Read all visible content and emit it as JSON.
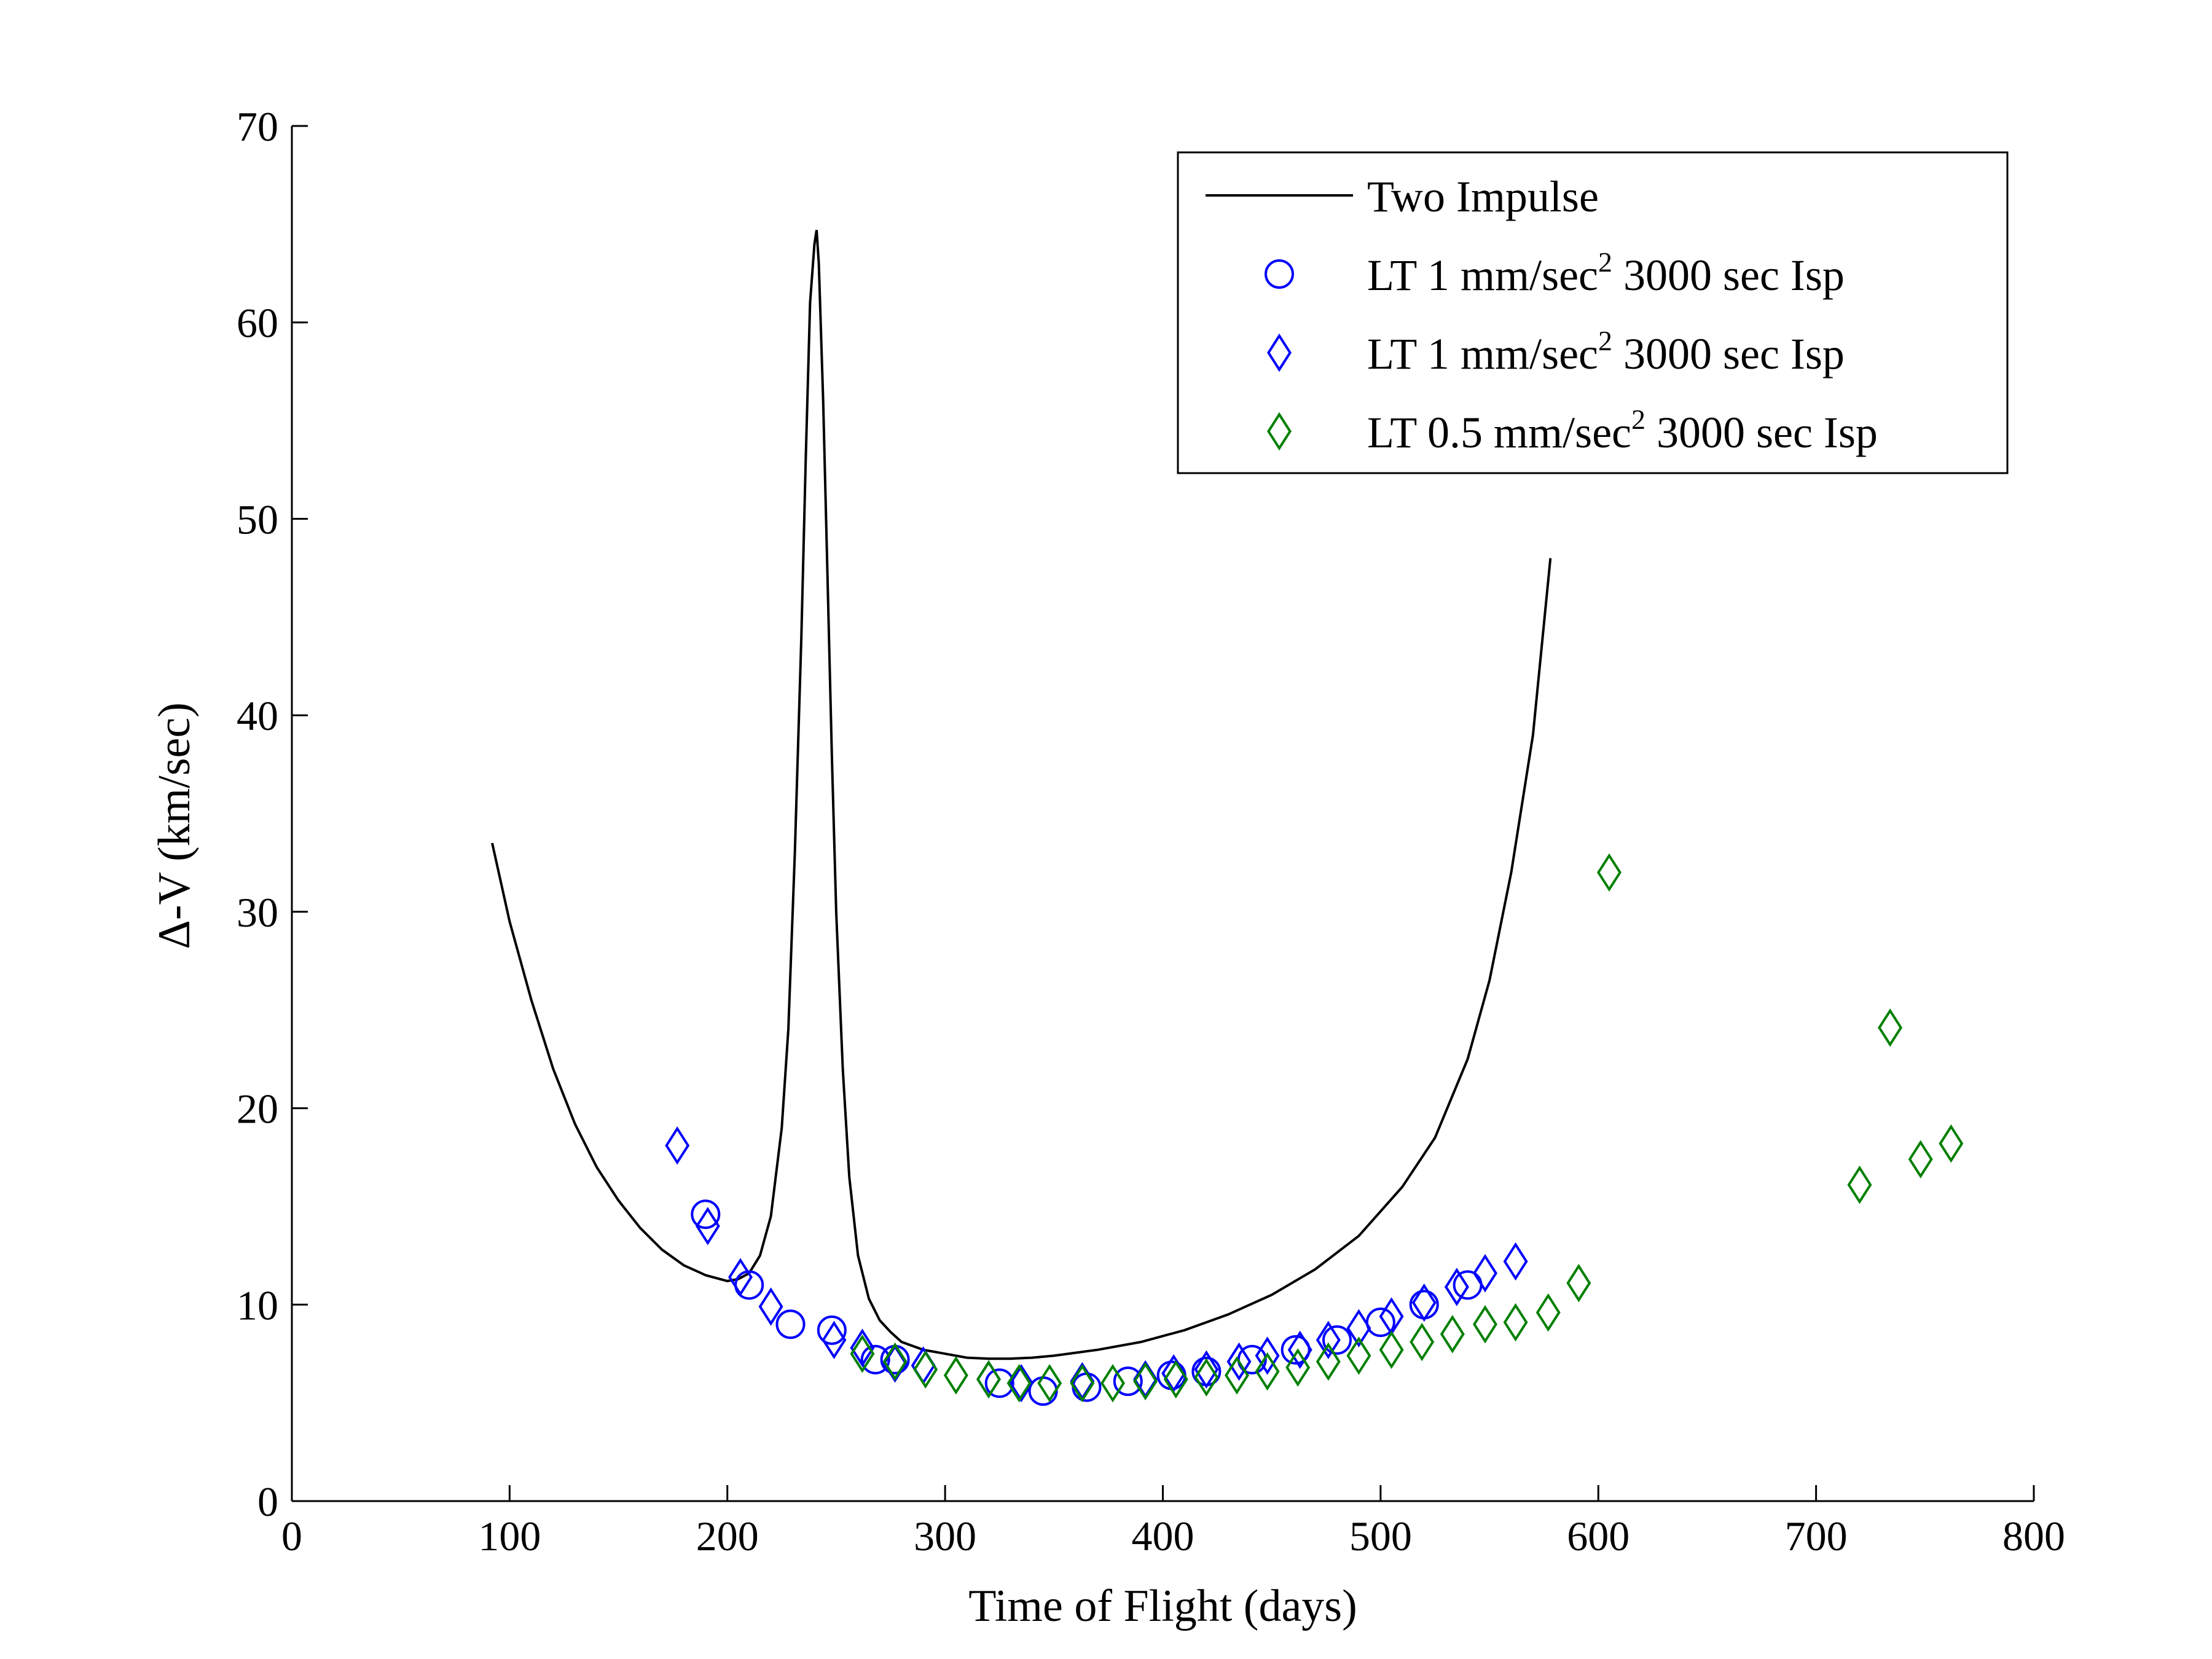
{
  "chart_data": {
    "type": "scatter",
    "xlabel": "Time of Flight (days)",
    "ylabel": "Δ-V (km/sec)",
    "xlim": [
      0,
      800
    ],
    "ylim": [
      0,
      70
    ],
    "xticks": [
      0,
      100,
      200,
      300,
      400,
      500,
      600,
      700,
      800
    ],
    "yticks": [
      0,
      10,
      20,
      30,
      40,
      50,
      60,
      70
    ],
    "grid": false,
    "legend_position": "top-right",
    "series": [
      {
        "name": "Two Impulse",
        "kind": "line",
        "color": "#000000",
        "x": [
          92,
          100,
          110,
          120,
          130,
          140,
          150,
          160,
          170,
          180,
          190,
          200,
          205,
          210,
          215,
          220,
          225,
          228,
          231,
          234,
          236,
          238,
          240,
          241,
          242,
          244,
          246,
          248,
          250,
          253,
          256,
          260,
          265,
          270,
          275,
          280,
          290,
          300,
          310,
          320,
          330,
          340,
          350,
          370,
          390,
          410,
          430,
          450,
          470,
          490,
          510,
          525,
          540,
          550,
          560,
          570,
          578
        ],
        "y": [
          33.5,
          29.5,
          25.5,
          22.0,
          19.2,
          17.0,
          15.3,
          13.9,
          12.8,
          12.0,
          11.5,
          11.2,
          11.3,
          11.6,
          12.5,
          14.5,
          19.0,
          24.0,
          33.0,
          44.0,
          53.0,
          61.0,
          64.0,
          64.7,
          63.0,
          56.0,
          47.0,
          38.0,
          30.0,
          22.0,
          16.5,
          12.5,
          10.3,
          9.2,
          8.6,
          8.1,
          7.7,
          7.5,
          7.3,
          7.25,
          7.25,
          7.3,
          7.4,
          7.7,
          8.1,
          8.7,
          9.5,
          10.5,
          11.8,
          13.5,
          16.0,
          18.5,
          22.5,
          26.5,
          32.0,
          39.0,
          48.0
        ]
      },
      {
        "name": "LT 1 mm/sec",
        "name_sup": "2",
        "name_rest": " 3000 sec Isp",
        "kind": "marker",
        "marker": "circle",
        "color": "#0000ff",
        "x": [
          190,
          210,
          229,
          248,
          268,
          277,
          325,
          345,
          365,
          384,
          404,
          420,
          441,
          461,
          480,
          500,
          520,
          540
        ],
        "y": [
          14.6,
          11.0,
          9.0,
          8.7,
          7.2,
          7.2,
          6.0,
          5.6,
          5.8,
          6.1,
          6.4,
          6.6,
          7.2,
          7.7,
          8.2,
          9.1,
          10.0,
          11.0
        ]
      },
      {
        "name": "LT 1 mm/sec",
        "name_sup": "2",
        "name_rest": " 3000 sec Isp",
        "kind": "marker",
        "marker": "diamond",
        "color": "#0000ff",
        "x": [
          177,
          191,
          206,
          220,
          249,
          262,
          277,
          290,
          320,
          335,
          363,
          392,
          405,
          420,
          435,
          448,
          463,
          476,
          490,
          505,
          520,
          535,
          548,
          562
        ],
        "y": [
          18.1,
          14.0,
          11.4,
          9.9,
          8.2,
          7.8,
          7.0,
          6.9,
          6.2,
          6.0,
          6.1,
          6.2,
          6.5,
          6.7,
          7.1,
          7.4,
          7.7,
          8.2,
          8.8,
          9.4,
          10.1,
          10.9,
          11.6,
          12.2
        ]
      },
      {
        "name": "LT 0.5 mm/sec",
        "name_sup": "2",
        "name_rest": " 3000 sec Isp",
        "kind": "marker",
        "marker": "diamond",
        "color": "#008000",
        "x": [
          262,
          277,
          291,
          305,
          320,
          334,
          348,
          363,
          377,
          392,
          406,
          420,
          434,
          448,
          462,
          476,
          490,
          505,
          519,
          533,
          548,
          562,
          577,
          591,
          605,
          720,
          734,
          748,
          762
        ],
        "y": [
          7.5,
          7.1,
          6.7,
          6.4,
          6.2,
          6.0,
          6.0,
          6.0,
          6.0,
          6.1,
          6.2,
          6.3,
          6.4,
          6.6,
          6.8,
          7.1,
          7.4,
          7.7,
          8.1,
          8.5,
          9.0,
          9.1,
          9.6,
          11.1,
          32.0,
          16.1,
          24.1,
          17.4,
          18.2
        ]
      }
    ]
  }
}
